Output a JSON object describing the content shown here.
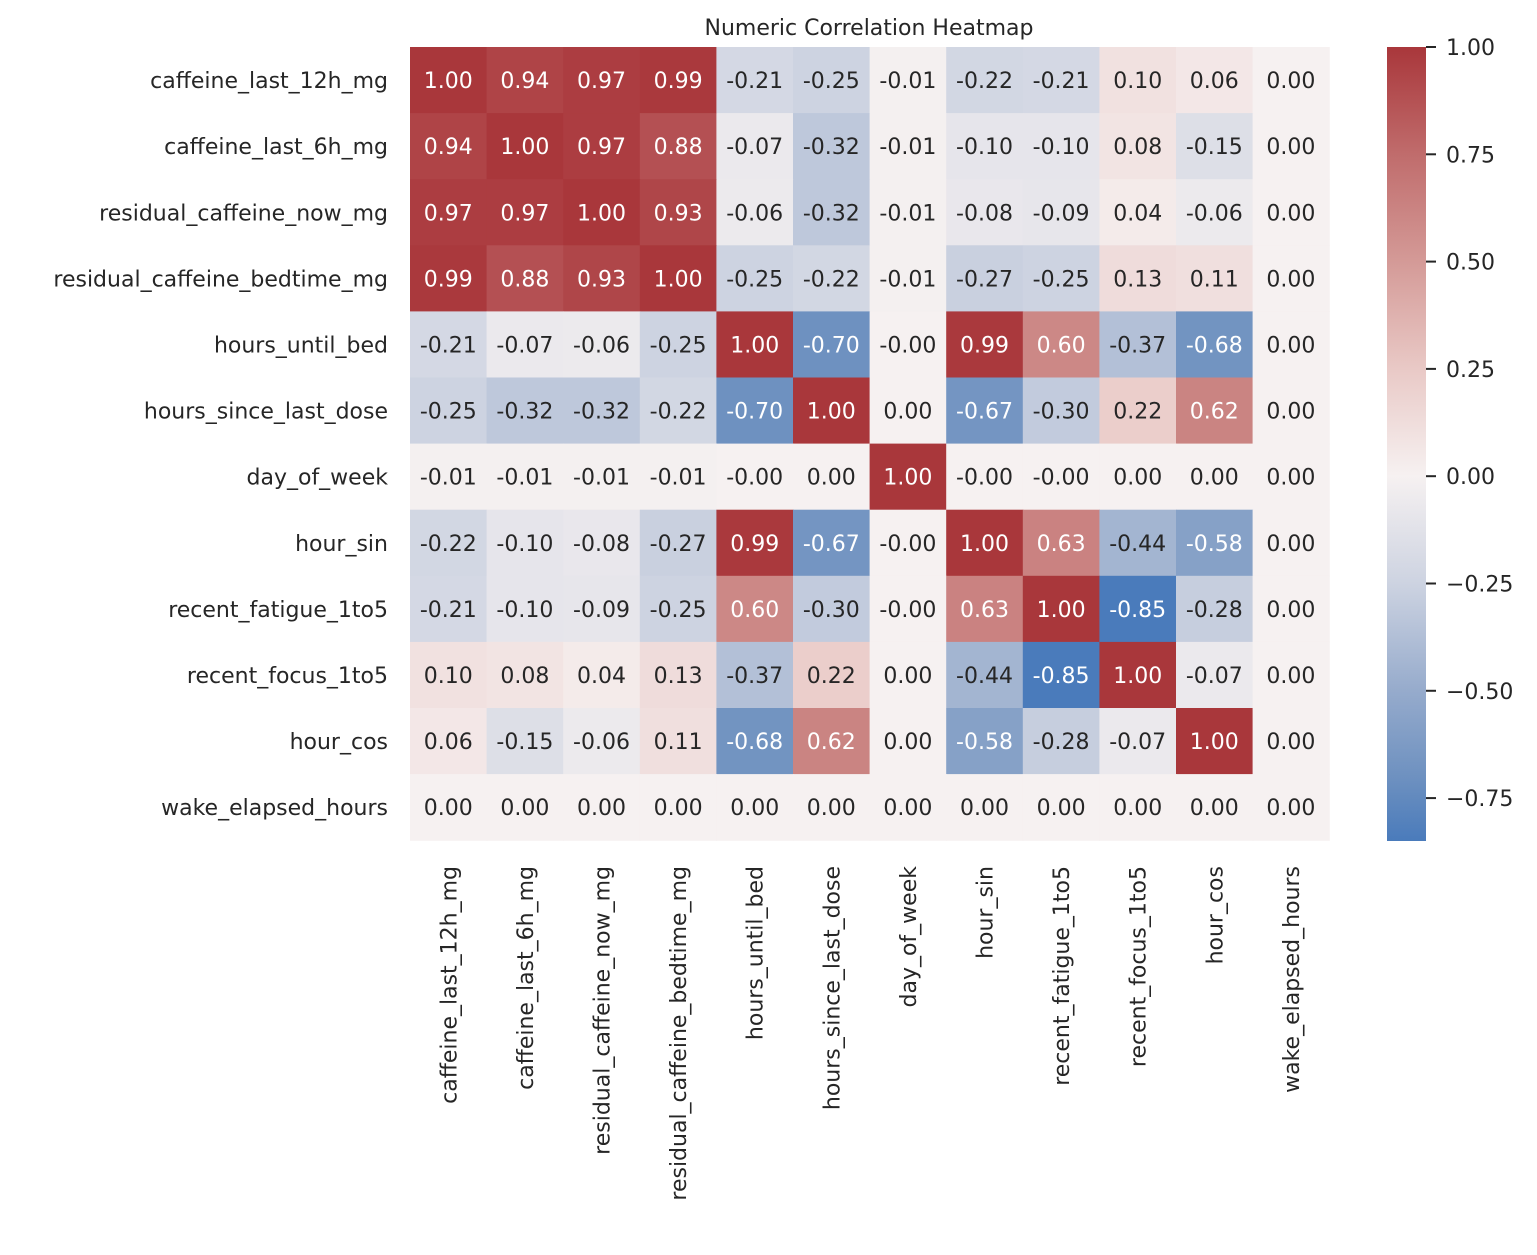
{
  "chart_data": {
    "type": "heatmap",
    "title": "Numeric Correlation Heatmap",
    "labels": [
      "caffeine_last_12h_mg",
      "caffeine_last_6h_mg",
      "residual_caffeine_now_mg",
      "residual_caffeine_bedtime_mg",
      "hours_until_bed",
      "hours_since_last_dose",
      "day_of_week",
      "hour_sin",
      "recent_fatigue_1to5",
      "recent_focus_1to5",
      "hour_cos",
      "wake_elapsed_hours"
    ],
    "values": [
      [
        1.0,
        0.94,
        0.97,
        0.99,
        -0.21,
        -0.25,
        -0.01,
        -0.22,
        -0.21,
        0.1,
        0.06,
        0.0
      ],
      [
        0.94,
        1.0,
        0.97,
        0.88,
        -0.07,
        -0.32,
        -0.01,
        -0.1,
        -0.1,
        0.08,
        -0.15,
        0.0
      ],
      [
        0.97,
        0.97,
        1.0,
        0.93,
        -0.06,
        -0.32,
        -0.01,
        -0.08,
        -0.09,
        0.04,
        -0.06,
        0.0
      ],
      [
        0.99,
        0.88,
        0.93,
        1.0,
        -0.25,
        -0.22,
        -0.01,
        -0.27,
        -0.25,
        0.13,
        0.11,
        0.0
      ],
      [
        -0.21,
        -0.07,
        -0.06,
        -0.25,
        1.0,
        -0.7,
        -0.0,
        0.99,
        0.6,
        -0.37,
        -0.68,
        0.0
      ],
      [
        -0.25,
        -0.32,
        -0.32,
        -0.22,
        -0.7,
        1.0,
        0.0,
        -0.67,
        -0.3,
        0.22,
        0.62,
        0.0
      ],
      [
        -0.01,
        -0.01,
        -0.01,
        -0.01,
        -0.0,
        0.0,
        1.0,
        -0.0,
        -0.0,
        0.0,
        0.0,
        0.0
      ],
      [
        -0.22,
        -0.1,
        -0.08,
        -0.27,
        0.99,
        -0.67,
        -0.0,
        1.0,
        0.63,
        -0.44,
        -0.58,
        0.0
      ],
      [
        -0.21,
        -0.1,
        -0.09,
        -0.25,
        0.6,
        -0.3,
        -0.0,
        0.63,
        1.0,
        -0.85,
        -0.28,
        0.0
      ],
      [
        0.1,
        0.08,
        0.04,
        0.13,
        -0.37,
        0.22,
        0.0,
        -0.44,
        -0.85,
        1.0,
        -0.07,
        0.0
      ],
      [
        0.06,
        -0.15,
        -0.06,
        0.11,
        -0.68,
        0.62,
        0.0,
        -0.58,
        -0.28,
        -0.07,
        1.0,
        0.0
      ],
      [
        0.0,
        0.0,
        0.0,
        0.0,
        0.0,
        0.0,
        0.0,
        0.0,
        0.0,
        0.0,
        0.0,
        0.0
      ]
    ],
    "annotations": [
      [
        "1.00",
        "0.94",
        "0.97",
        "0.99",
        "-0.21",
        "-0.25",
        "-0.01",
        "-0.22",
        "-0.21",
        "0.10",
        "0.06",
        "0.00"
      ],
      [
        "0.94",
        "1.00",
        "0.97",
        "0.88",
        "-0.07",
        "-0.32",
        "-0.01",
        "-0.10",
        "-0.10",
        "0.08",
        "-0.15",
        "0.00"
      ],
      [
        "0.97",
        "0.97",
        "1.00",
        "0.93",
        "-0.06",
        "-0.32",
        "-0.01",
        "-0.08",
        "-0.09",
        "0.04",
        "-0.06",
        "0.00"
      ],
      [
        "0.99",
        "0.88",
        "0.93",
        "1.00",
        "-0.25",
        "-0.22",
        "-0.01",
        "-0.27",
        "-0.25",
        "0.13",
        "0.11",
        "0.00"
      ],
      [
        "-0.21",
        "-0.07",
        "-0.06",
        "-0.25",
        "1.00",
        "-0.70",
        "-0.00",
        "0.99",
        "0.60",
        "-0.37",
        "-0.68",
        "0.00"
      ],
      [
        "-0.25",
        "-0.32",
        "-0.32",
        "-0.22",
        "-0.70",
        "1.00",
        "0.00",
        "-0.67",
        "-0.30",
        "0.22",
        "0.62",
        "0.00"
      ],
      [
        "-0.01",
        "-0.01",
        "-0.01",
        "-0.01",
        "-0.00",
        "0.00",
        "1.00",
        "-0.00",
        "-0.00",
        "0.00",
        "0.00",
        "0.00"
      ],
      [
        "-0.22",
        "-0.10",
        "-0.08",
        "-0.27",
        "0.99",
        "-0.67",
        "-0.00",
        "1.00",
        "0.63",
        "-0.44",
        "-0.58",
        "0.00"
      ],
      [
        "-0.21",
        "-0.10",
        "-0.09",
        "-0.25",
        "0.60",
        "-0.30",
        "-0.00",
        "0.63",
        "1.00",
        "-0.85",
        "-0.28",
        "0.00"
      ],
      [
        "0.10",
        "0.08",
        "0.04",
        "0.13",
        "-0.37",
        "0.22",
        "0.00",
        "-0.44",
        "-0.85",
        "1.00",
        "-0.07",
        "0.00"
      ],
      [
        "0.06",
        "-0.15",
        "-0.06",
        "0.11",
        "-0.68",
        "0.62",
        "0.00",
        "-0.58",
        "-0.28",
        "-0.07",
        "1.00",
        "0.00"
      ],
      [
        "0.00",
        "0.00",
        "0.00",
        "0.00",
        "0.00",
        "0.00",
        "0.00",
        "0.00",
        "0.00",
        "0.00",
        "0.00",
        "0.00"
      ]
    ],
    "colorbar": {
      "range": [
        -0.85,
        1.0
      ],
      "ticks": [
        1.0,
        0.75,
        0.5,
        0.25,
        0.0,
        -0.25,
        -0.5,
        -0.75
      ],
      "tick_labels": [
        "1.00",
        "0.75",
        "0.50",
        "0.25",
        "0.00",
        "−0.25",
        "−0.50",
        "−0.75"
      ],
      "colormap": "vlag",
      "colors": {
        "low": "#4a7bbb",
        "center": "#f6f1f1",
        "high": "#a9373b"
      }
    },
    "grid": false
  }
}
